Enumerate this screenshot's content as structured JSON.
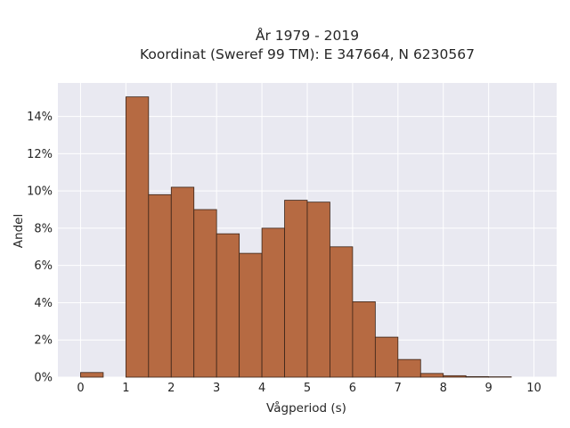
{
  "chart_data": {
    "type": "bar",
    "title_lines": [
      "År 1979 - 2019",
      "Koordinat (Sweref 99 TM): E 347664, N 6230567"
    ],
    "xlabel": "Vågperiod (s)",
    "ylabel": "Andel",
    "xlim": [
      -0.5,
      10.5
    ],
    "ylim": [
      0,
      15.8
    ],
    "x_ticks": [
      0,
      1,
      2,
      3,
      4,
      5,
      6,
      7,
      8,
      9,
      10
    ],
    "y_ticks": [
      0,
      2,
      4,
      6,
      8,
      10,
      12,
      14
    ],
    "y_tick_labels": [
      "0%",
      "2%",
      "4%",
      "6%",
      "8%",
      "10%",
      "12%",
      "14%"
    ],
    "bin_width": 0.5,
    "bins": [
      {
        "x0": 0.0,
        "value": 0.25
      },
      {
        "x0": 1.0,
        "value": 15.05
      },
      {
        "x0": 1.5,
        "value": 9.8
      },
      {
        "x0": 2.0,
        "value": 10.2
      },
      {
        "x0": 2.5,
        "value": 9.0
      },
      {
        "x0": 3.0,
        "value": 7.7
      },
      {
        "x0": 3.5,
        "value": 6.65
      },
      {
        "x0": 4.0,
        "value": 8.0
      },
      {
        "x0": 4.5,
        "value": 9.5
      },
      {
        "x0": 5.0,
        "value": 9.4
      },
      {
        "x0": 5.5,
        "value": 7.0
      },
      {
        "x0": 6.0,
        "value": 4.05
      },
      {
        "x0": 6.5,
        "value": 2.15
      },
      {
        "x0": 7.0,
        "value": 0.95
      },
      {
        "x0": 7.5,
        "value": 0.2
      },
      {
        "x0": 8.0,
        "value": 0.08
      },
      {
        "x0": 8.5,
        "value": 0.03
      },
      {
        "x0": 9.0,
        "value": 0.02
      }
    ],
    "grid": true,
    "colors": {
      "bar_fill": "#b66a42",
      "bar_edge": "#3a2418",
      "plot_bg": "#e9e9f1",
      "grid": "#ffffff"
    }
  }
}
